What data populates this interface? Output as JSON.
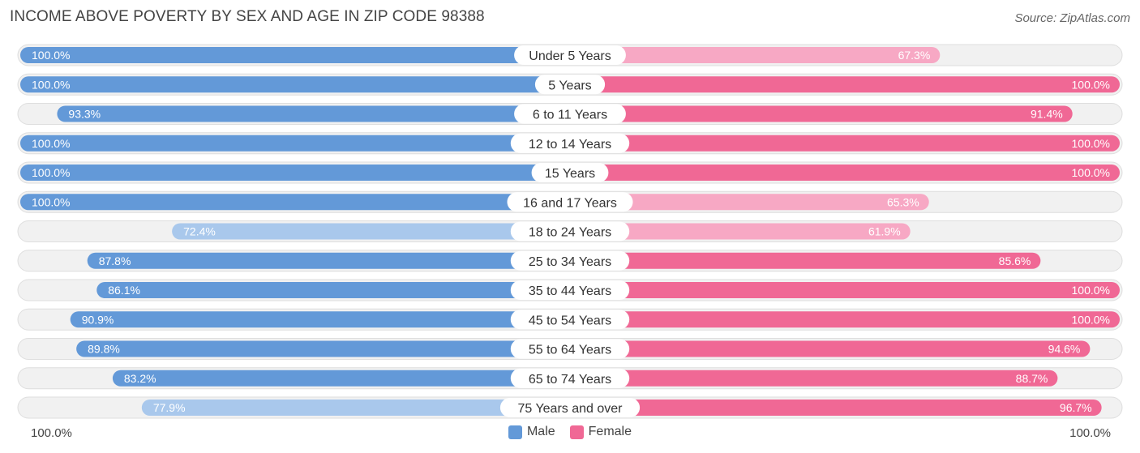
{
  "title": "INCOME ABOVE POVERTY BY SEX AND AGE IN ZIP CODE 98388",
  "source": "Source: ZipAtlas.com",
  "axis": {
    "left_label": "100.0%",
    "right_label": "100.0%"
  },
  "legend": {
    "male_label": "Male",
    "female_label": "Female"
  },
  "colors": {
    "male_strong": "#6399d8",
    "male_light": "#a9c8ec",
    "female_strong": "#f06895",
    "female_light": "#f7a8c4",
    "track": "#eeeeee"
  },
  "chart_data": {
    "type": "bar",
    "orientation": "horizontal-diverging",
    "categories": [
      "Under 5 Years",
      "5 Years",
      "6 to 11 Years",
      "12 to 14 Years",
      "15 Years",
      "16 and 17 Years",
      "18 to 24 Years",
      "25 to 34 Years",
      "35 to 44 Years",
      "45 to 54 Years",
      "55 to 64 Years",
      "65 to 74 Years",
      "75 Years and over"
    ],
    "series": [
      {
        "name": "Male",
        "values": [
          100.0,
          100.0,
          93.3,
          100.0,
          100.0,
          100.0,
          72.4,
          87.8,
          86.1,
          90.9,
          89.8,
          83.2,
          77.9
        ]
      },
      {
        "name": "Female",
        "values": [
          67.3,
          100.0,
          91.4,
          100.0,
          100.0,
          65.3,
          61.9,
          85.6,
          100.0,
          100.0,
          94.6,
          88.7,
          96.7
        ]
      }
    ],
    "value_labels": {
      "male": [
        "100.0%",
        "100.0%",
        "93.3%",
        "100.0%",
        "100.0%",
        "100.0%",
        "72.4%",
        "87.8%",
        "86.1%",
        "90.9%",
        "89.8%",
        "83.2%",
        "77.9%"
      ],
      "female": [
        "67.3%",
        "100.0%",
        "91.4%",
        "100.0%",
        "100.0%",
        "65.3%",
        "61.9%",
        "85.6%",
        "100.0%",
        "100.0%",
        "94.6%",
        "88.7%",
        "96.7%"
      ]
    },
    "xlim": [
      0,
      100
    ],
    "unit": "%"
  }
}
